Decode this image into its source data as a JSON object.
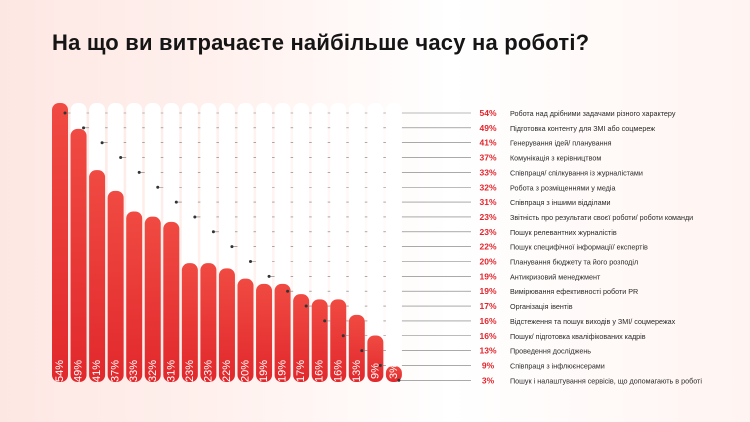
{
  "title": "На що ви витрачаєте найбільше часу на роботі?",
  "colors": {
    "bar_top": "#f04a42",
    "bar_bottom": "#e1282c",
    "track": "#ffffff",
    "pct": "#e3232b",
    "label": "#2a2a2a",
    "leader": "#777777"
  },
  "chart_data": {
    "type": "bar",
    "title": "На що ви витрачаєте найбільше часу на роботі?",
    "xlabel": "",
    "ylabel": "",
    "ylim": [
      0,
      54
    ],
    "grid": false,
    "legend": "right",
    "categories": [
      "Робота над дрібними задачами різного характеру",
      "Підготовка контенту для ЗМІ або соцмереж",
      "Генерування ідей/ планування",
      "Комунікація з керівництвом",
      "Співпраця/ спілкування із журналістами",
      "Робота з розміщеннями у медіа",
      "Співпраця з іншими відділами",
      "Звітність про результати своєї роботи/ роботи команди",
      "Пошук релевантних журналістів",
      "Пошук специфічної інформації/ експертів",
      "Планування бюджету та його розподіл",
      "Антикризовий менеджмент",
      "Вимірювання ефективності роботи PR",
      "Організація івентів",
      "Відстеження та пошук виходів у ЗМІ/ соцмережах",
      "Пошук/ підготовка кваліфікованих кадрів",
      "Проведення досліджень",
      "Співпраця з інфлюєнсерами",
      "Пошук і налаштування сервісів, що допомагають в роботі"
    ],
    "values": [
      54,
      49,
      41,
      37,
      33,
      32,
      31,
      23,
      23,
      22,
      20,
      19,
      19,
      17,
      16,
      16,
      13,
      9,
      3
    ],
    "value_labels": [
      "54%",
      "49%",
      "41%",
      "37%",
      "33%",
      "32%",
      "31%",
      "23%",
      "23%",
      "22%",
      "20%",
      "19%",
      "19%",
      "17%",
      "16%",
      "16%",
      "13%",
      "9%",
      "3%"
    ]
  }
}
